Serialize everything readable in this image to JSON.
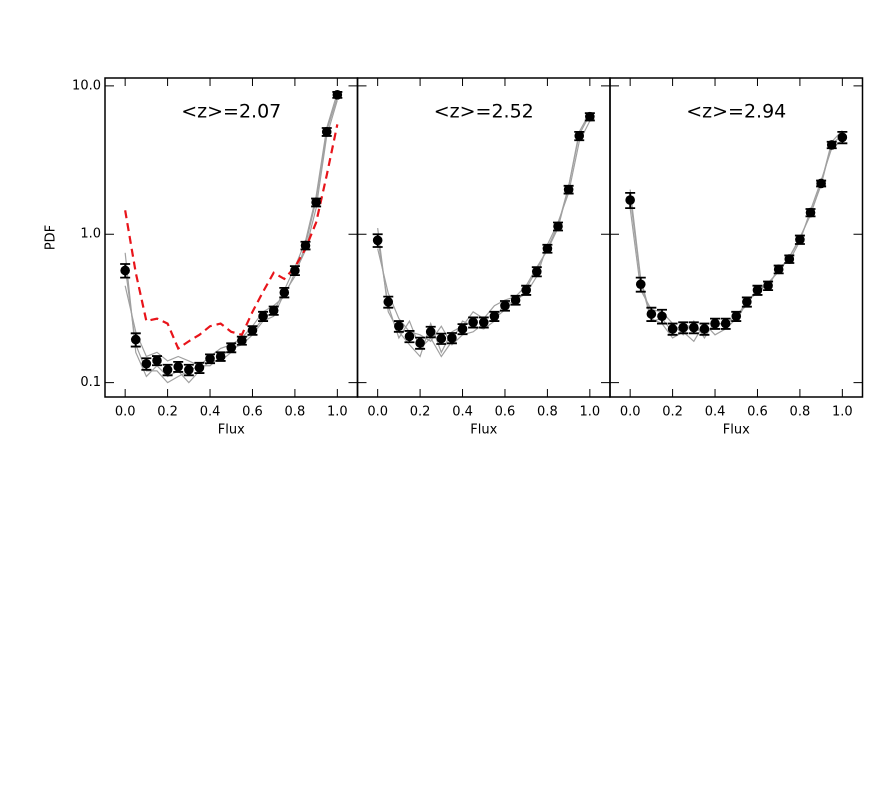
{
  "chart_data": [
    {
      "type": "line",
      "title": "<z>=2.07",
      "x_label": "Flux",
      "y_label": "PDF",
      "log_y": true,
      "xlim": [
        -0.095,
        1.095
      ],
      "ylim": [
        0.08,
        11.3
      ],
      "xticks": [
        {
          "value": 0,
          "label": "0.0"
        },
        0.2,
        0.4,
        0.6,
        0.8,
        {
          "value": 1,
          "label": "1.0"
        }
      ],
      "yticks": [
        {
          "value": 10,
          "label": "10.0"
        },
        {
          "value": 1,
          "label": "1.0"
        },
        0.1
      ],
      "x": [
        0,
        0.05,
        0.1,
        0.15,
        0.2,
        0.25,
        0.3,
        0.35,
        0.4,
        0.45,
        0.5,
        0.55,
        0.6,
        0.65,
        0.7,
        0.75,
        0.8,
        0.85,
        0.9,
        0.95,
        1
      ],
      "series": [
        {
          "style": "line",
          "color": "#a0a0a0",
          "values": [
            0.75,
            0.16,
            0.11,
            0.13,
            0.11,
            0.12,
            0.1,
            0.12,
            0.14,
            0.14,
            0.16,
            0.19,
            0.22,
            0.27,
            0.3,
            0.42,
            0.6,
            0.9,
            1.8,
            5.2,
            9.0
          ]
        },
        {
          "style": "line",
          "color": "#a0a0a0",
          "values": [
            0.45,
            0.22,
            0.15,
            0.16,
            0.14,
            0.15,
            0.14,
            0.13,
            0.15,
            0.17,
            0.18,
            0.2,
            0.24,
            0.3,
            0.33,
            0.38,
            0.55,
            0.78,
            1.5,
            4.6,
            8.0
          ]
        },
        {
          "style": "line",
          "color": "#a0a0a0",
          "values": [
            0.6,
            0.18,
            0.12,
            0.12,
            0.1,
            0.11,
            0.12,
            0.13,
            0.13,
            0.15,
            0.17,
            0.18,
            0.21,
            0.26,
            0.28,
            0.4,
            0.52,
            0.85,
            1.7,
            5.0,
            8.4
          ]
        },
        {
          "style": "dashed",
          "color": "#e8141a",
          "values": [
            1.45,
            0.55,
            0.26,
            0.27,
            0.25,
            0.17,
            0.19,
            0.21,
            0.24,
            0.25,
            0.22,
            0.21,
            0.3,
            0.41,
            0.55,
            0.5,
            0.6,
            0.8,
            1.2,
            2.5,
            5.5
          ]
        },
        {
          "style": "points",
          "color": "#000000",
          "values": [
            0.57,
            0.195,
            0.134,
            0.141,
            0.122,
            0.128,
            0.122,
            0.126,
            0.145,
            0.15,
            0.172,
            0.192,
            0.225,
            0.28,
            0.306,
            0.405,
            0.57,
            0.84,
            1.64,
            4.9,
            8.7
          ],
          "errors": [
            0.06,
            0.02,
            0.012,
            0.01,
            0.01,
            0.01,
            0.01,
            0.01,
            0.01,
            0.01,
            0.012,
            0.012,
            0.015,
            0.02,
            0.02,
            0.03,
            0.04,
            0.05,
            0.1,
            0.3,
            0.4
          ]
        }
      ]
    },
    {
      "type": "line",
      "title": "<z>=2.52",
      "x_label": "Flux",
      "log_y": true,
      "xlim": [
        -0.095,
        1.095
      ],
      "ylim": [
        0.08,
        11.3
      ],
      "xticks": [
        {
          "value": 0,
          "label": "0.0"
        },
        0.2,
        0.4,
        0.6,
        0.8,
        {
          "value": 1,
          "label": "1.0"
        }
      ],
      "yticks": [
        10,
        1,
        0.1
      ],
      "x": [
        0,
        0.05,
        0.1,
        0.15,
        0.2,
        0.25,
        0.3,
        0.35,
        0.4,
        0.45,
        0.5,
        0.55,
        0.6,
        0.65,
        0.7,
        0.75,
        0.8,
        0.85,
        0.9,
        0.95,
        1
      ],
      "series": [
        {
          "style": "line",
          "color": "#a0a0a0",
          "values": [
            1.1,
            0.3,
            0.22,
            0.18,
            0.15,
            0.25,
            0.16,
            0.22,
            0.24,
            0.3,
            0.27,
            0.33,
            0.36,
            0.38,
            0.45,
            0.6,
            0.78,
            1.1,
            2.1,
            4.9,
            6.6
          ]
        },
        {
          "style": "line",
          "color": "#a0a0a0",
          "values": [
            0.8,
            0.4,
            0.27,
            0.22,
            0.21,
            0.19,
            0.24,
            0.18,
            0.21,
            0.22,
            0.25,
            0.27,
            0.31,
            0.36,
            0.4,
            0.52,
            0.85,
            1.2,
            1.9,
            4.2,
            5.8
          ]
        },
        {
          "style": "line",
          "color": "#a0a0a0",
          "values": [
            0.95,
            0.33,
            0.2,
            0.26,
            0.17,
            0.2,
            0.15,
            0.19,
            0.26,
            0.24,
            0.23,
            0.26,
            0.35,
            0.34,
            0.43,
            0.58,
            0.8,
            1.15,
            2.1,
            4.7,
            6.4
          ]
        },
        {
          "style": "points",
          "color": "#000000",
          "values": [
            0.91,
            0.35,
            0.24,
            0.205,
            0.185,
            0.22,
            0.198,
            0.2,
            0.23,
            0.255,
            0.255,
            0.28,
            0.33,
            0.36,
            0.42,
            0.56,
            0.8,
            1.13,
            2.0,
            4.6,
            6.2
          ],
          "errors": [
            0.09,
            0.03,
            0.02,
            0.018,
            0.016,
            0.018,
            0.016,
            0.016,
            0.018,
            0.02,
            0.02,
            0.02,
            0.025,
            0.025,
            0.03,
            0.04,
            0.05,
            0.07,
            0.12,
            0.3,
            0.35
          ]
        }
      ]
    },
    {
      "type": "line",
      "title": "<z>=2.94",
      "x_label": "Flux",
      "log_y": true,
      "xlim": [
        -0.095,
        1.095
      ],
      "ylim": [
        0.08,
        11.3
      ],
      "xticks": [
        {
          "value": 0,
          "label": "0.0"
        },
        0.2,
        0.4,
        0.6,
        0.8,
        {
          "value": 1,
          "label": "1.0"
        }
      ],
      "yticks": [
        10,
        1,
        0.1
      ],
      "x": [
        0,
        0.05,
        0.1,
        0.15,
        0.2,
        0.25,
        0.3,
        0.35,
        0.4,
        0.45,
        0.5,
        0.55,
        0.6,
        0.65,
        0.7,
        0.75,
        0.8,
        0.85,
        0.9,
        0.95,
        1
      ],
      "series": [
        {
          "style": "line",
          "color": "#a0a0a0",
          "values": [
            2.0,
            0.5,
            0.27,
            0.25,
            0.2,
            0.22,
            0.19,
            0.25,
            0.21,
            0.23,
            0.27,
            0.36,
            0.4,
            0.47,
            0.56,
            0.7,
            0.95,
            1.35,
            2.2,
            4.2,
            5.0
          ]
        },
        {
          "style": "line",
          "color": "#a0a0a0",
          "values": [
            1.5,
            0.42,
            0.31,
            0.3,
            0.25,
            0.21,
            0.26,
            0.2,
            0.26,
            0.24,
            0.29,
            0.33,
            0.44,
            0.44,
            0.6,
            0.66,
            0.9,
            1.45,
            2.3,
            3.8,
            4.3
          ]
        },
        {
          "style": "line",
          "color": "#a0a0a0",
          "values": [
            1.8,
            0.48,
            0.26,
            0.27,
            0.22,
            0.25,
            0.23,
            0.22,
            0.24,
            0.26,
            0.26,
            0.35,
            0.42,
            0.46,
            0.57,
            0.7,
            0.93,
            1.38,
            2.15,
            4.1,
            4.6
          ]
        },
        {
          "style": "points",
          "color": "#000000",
          "values": [
            1.7,
            0.46,
            0.29,
            0.28,
            0.23,
            0.235,
            0.235,
            0.23,
            0.25,
            0.25,
            0.28,
            0.35,
            0.42,
            0.45,
            0.58,
            0.68,
            0.92,
            1.4,
            2.2,
            4.0,
            4.5
          ],
          "errors": [
            0.2,
            0.05,
            0.03,
            0.03,
            0.02,
            0.02,
            0.02,
            0.02,
            0.02,
            0.02,
            0.02,
            0.025,
            0.03,
            0.03,
            0.035,
            0.04,
            0.06,
            0.08,
            0.1,
            0.2,
            0.4
          ]
        }
      ]
    }
  ]
}
